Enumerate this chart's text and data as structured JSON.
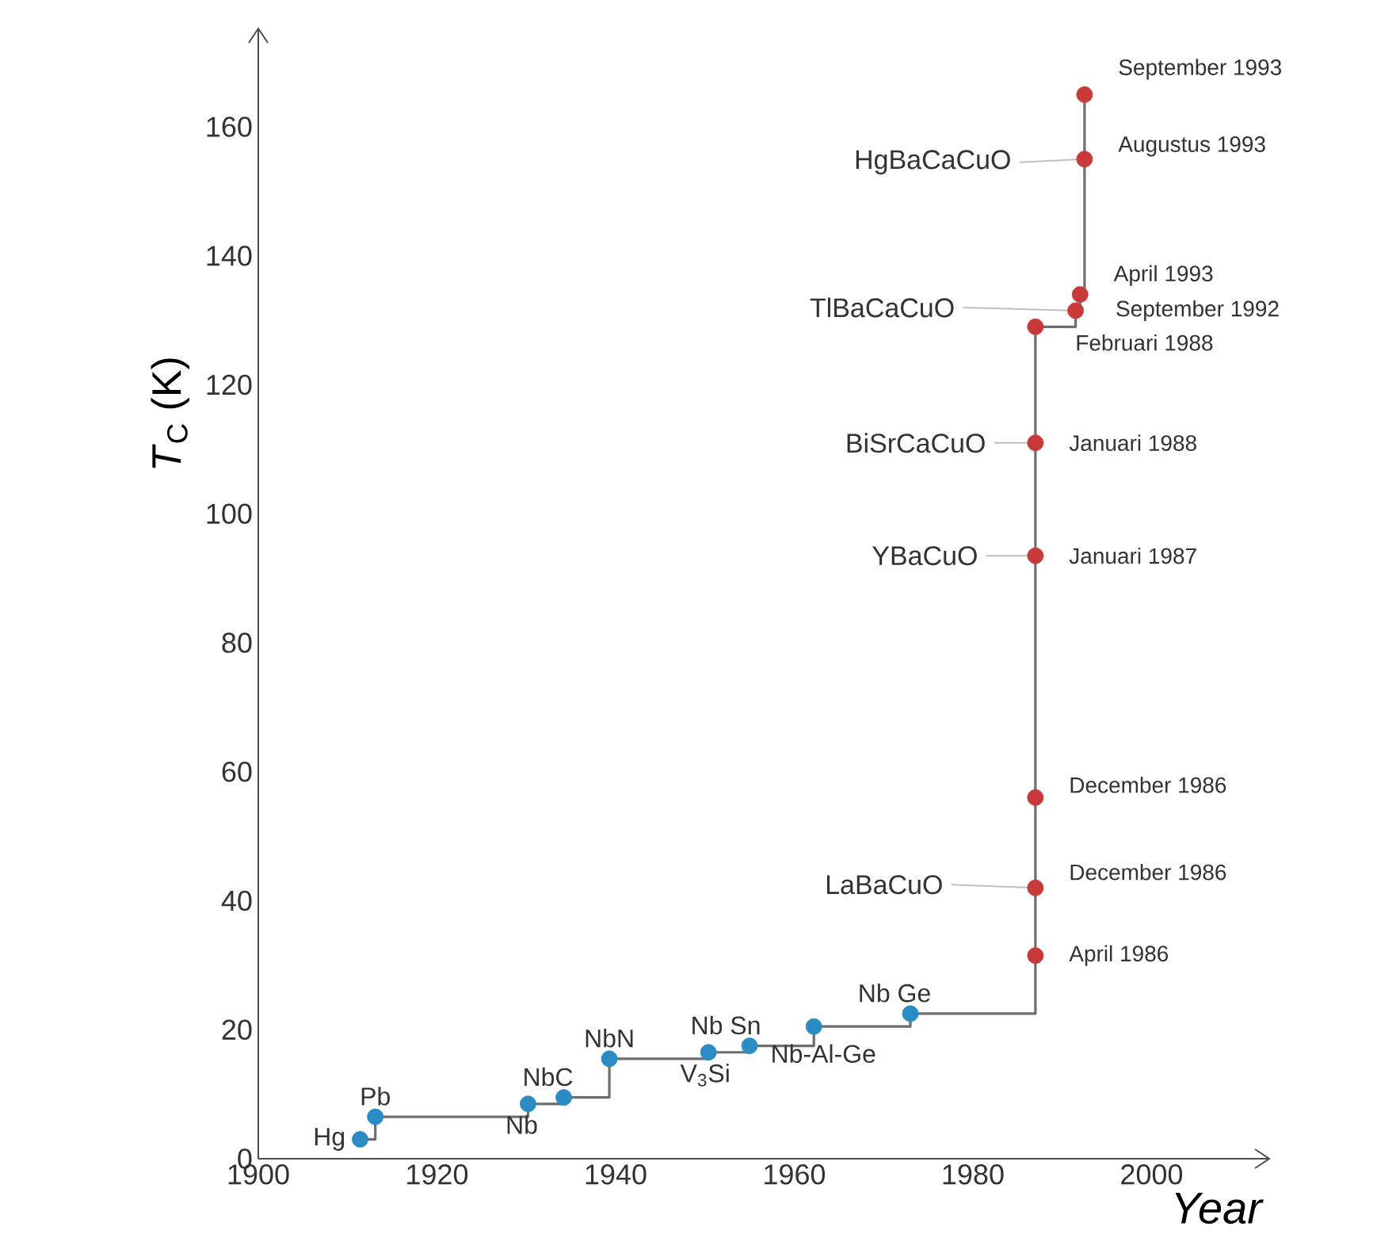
{
  "chart_data": {
    "type": "step",
    "xlabel": "Year",
    "ylabel": "*T*$_{C}$ (K)",
    "xlim": [
      1900,
      2013
    ],
    "ylim": [
      0,
      175
    ],
    "xticks": [
      1900,
      1920,
      1940,
      1960,
      1980,
      2000
    ],
    "yticks": [
      0,
      20,
      40,
      60,
      80,
      100,
      120,
      140,
      160
    ],
    "x": [
      1911.4,
      1913.1,
      1930.2,
      1934.2,
      1939.3,
      1950.4,
      1955,
      1962.2,
      1973,
      1987,
      1987,
      1987,
      1987,
      1987,
      1987,
      1991.5,
      1992,
      1992.5,
      1992.5
    ],
    "values": [
      3,
      6.5,
      8.5,
      9.5,
      15.5,
      16.5,
      17.5,
      20.5,
      22.5,
      31.5,
      42,
      56,
      93.5,
      111,
      129,
      131.5,
      134,
      155,
      165
    ],
    "color": "#6e6e6e",
    "colors": [
      "#2b8cc4",
      "#2b8cc4",
      "#2b8cc4",
      "#2b8cc4",
      "#2b8cc4",
      "#2b8cc4",
      "#2b8cc4",
      "#2b8cc4",
      "#2b8cc4",
      "#c8393a",
      "#c8393a",
      "#c8393a",
      "#c8393a",
      "#c8393a",
      "#c8393a",
      "#c8393a",
      "#c8393a",
      "#c8393a",
      "#c8393a"
    ],
    "marker": "circle",
    "annotations": [
      {
        "text": "Hg",
        "x": 1911.4,
        "y": 3
      },
      {
        "text": "Pb",
        "x": 1913.1,
        "y": 6.5
      },
      {
        "text": "Nb",
        "x": 1930.2,
        "y": 8.5
      },
      {
        "text": "NbC",
        "x": 1934.2,
        "y": 9.5
      },
      {
        "text": "NbN",
        "x": 1939.3,
        "y": 15.5
      },
      {
        "text": "V$_{3}$Si",
        "x": 1950.4,
        "y": 16.5
      },
      {
        "text": "Nb Sn",
        "x": 1955,
        "y": 17.5
      },
      {
        "text": "Nb-Al-Ge",
        "x": 1962.2,
        "y": 20.5
      },
      {
        "text": "Nb Ge",
        "x": 1973,
        "y": 22.5
      },
      {
        "text": "April 1986",
        "x": 1987,
        "y": 31.5
      },
      {
        "text": "December 1986",
        "x": 1987,
        "y": 42
      },
      {
        "text": "December 1986",
        "x": 1987,
        "y": 56
      },
      {
        "text": "Januari 1987",
        "x": 1987,
        "y": 93.5
      },
      {
        "text": "Januari 1988",
        "x": 1987,
        "y": 111
      },
      {
        "text": "Februari 1988",
        "x": 1987,
        "y": 129
      },
      {
        "text": "September 1992",
        "x": 1991.5,
        "y": 131.5
      },
      {
        "text": "April 1993",
        "x": 1992,
        "y": 134
      },
      {
        "text": "Augustus 1993",
        "x": 1992.5,
        "y": 155
      },
      {
        "text": "September 1993",
        "x": 1992.5,
        "y": 165
      },
      {
        "text": "LaBaCuO",
        "x": 1987,
        "y": 42
      },
      {
        "text": "YBaCuO",
        "x": 1987,
        "y": 93.5
      },
      {
        "text": "BiSrCaCuO",
        "x": 1987,
        "y": 111
      },
      {
        "text": "TlBaCaCuO",
        "x": 1991.5,
        "y": 131.5
      },
      {
        "text": "HgBaCaCuO",
        "x": 1992.5,
        "y": 155
      }
    ]
  }
}
